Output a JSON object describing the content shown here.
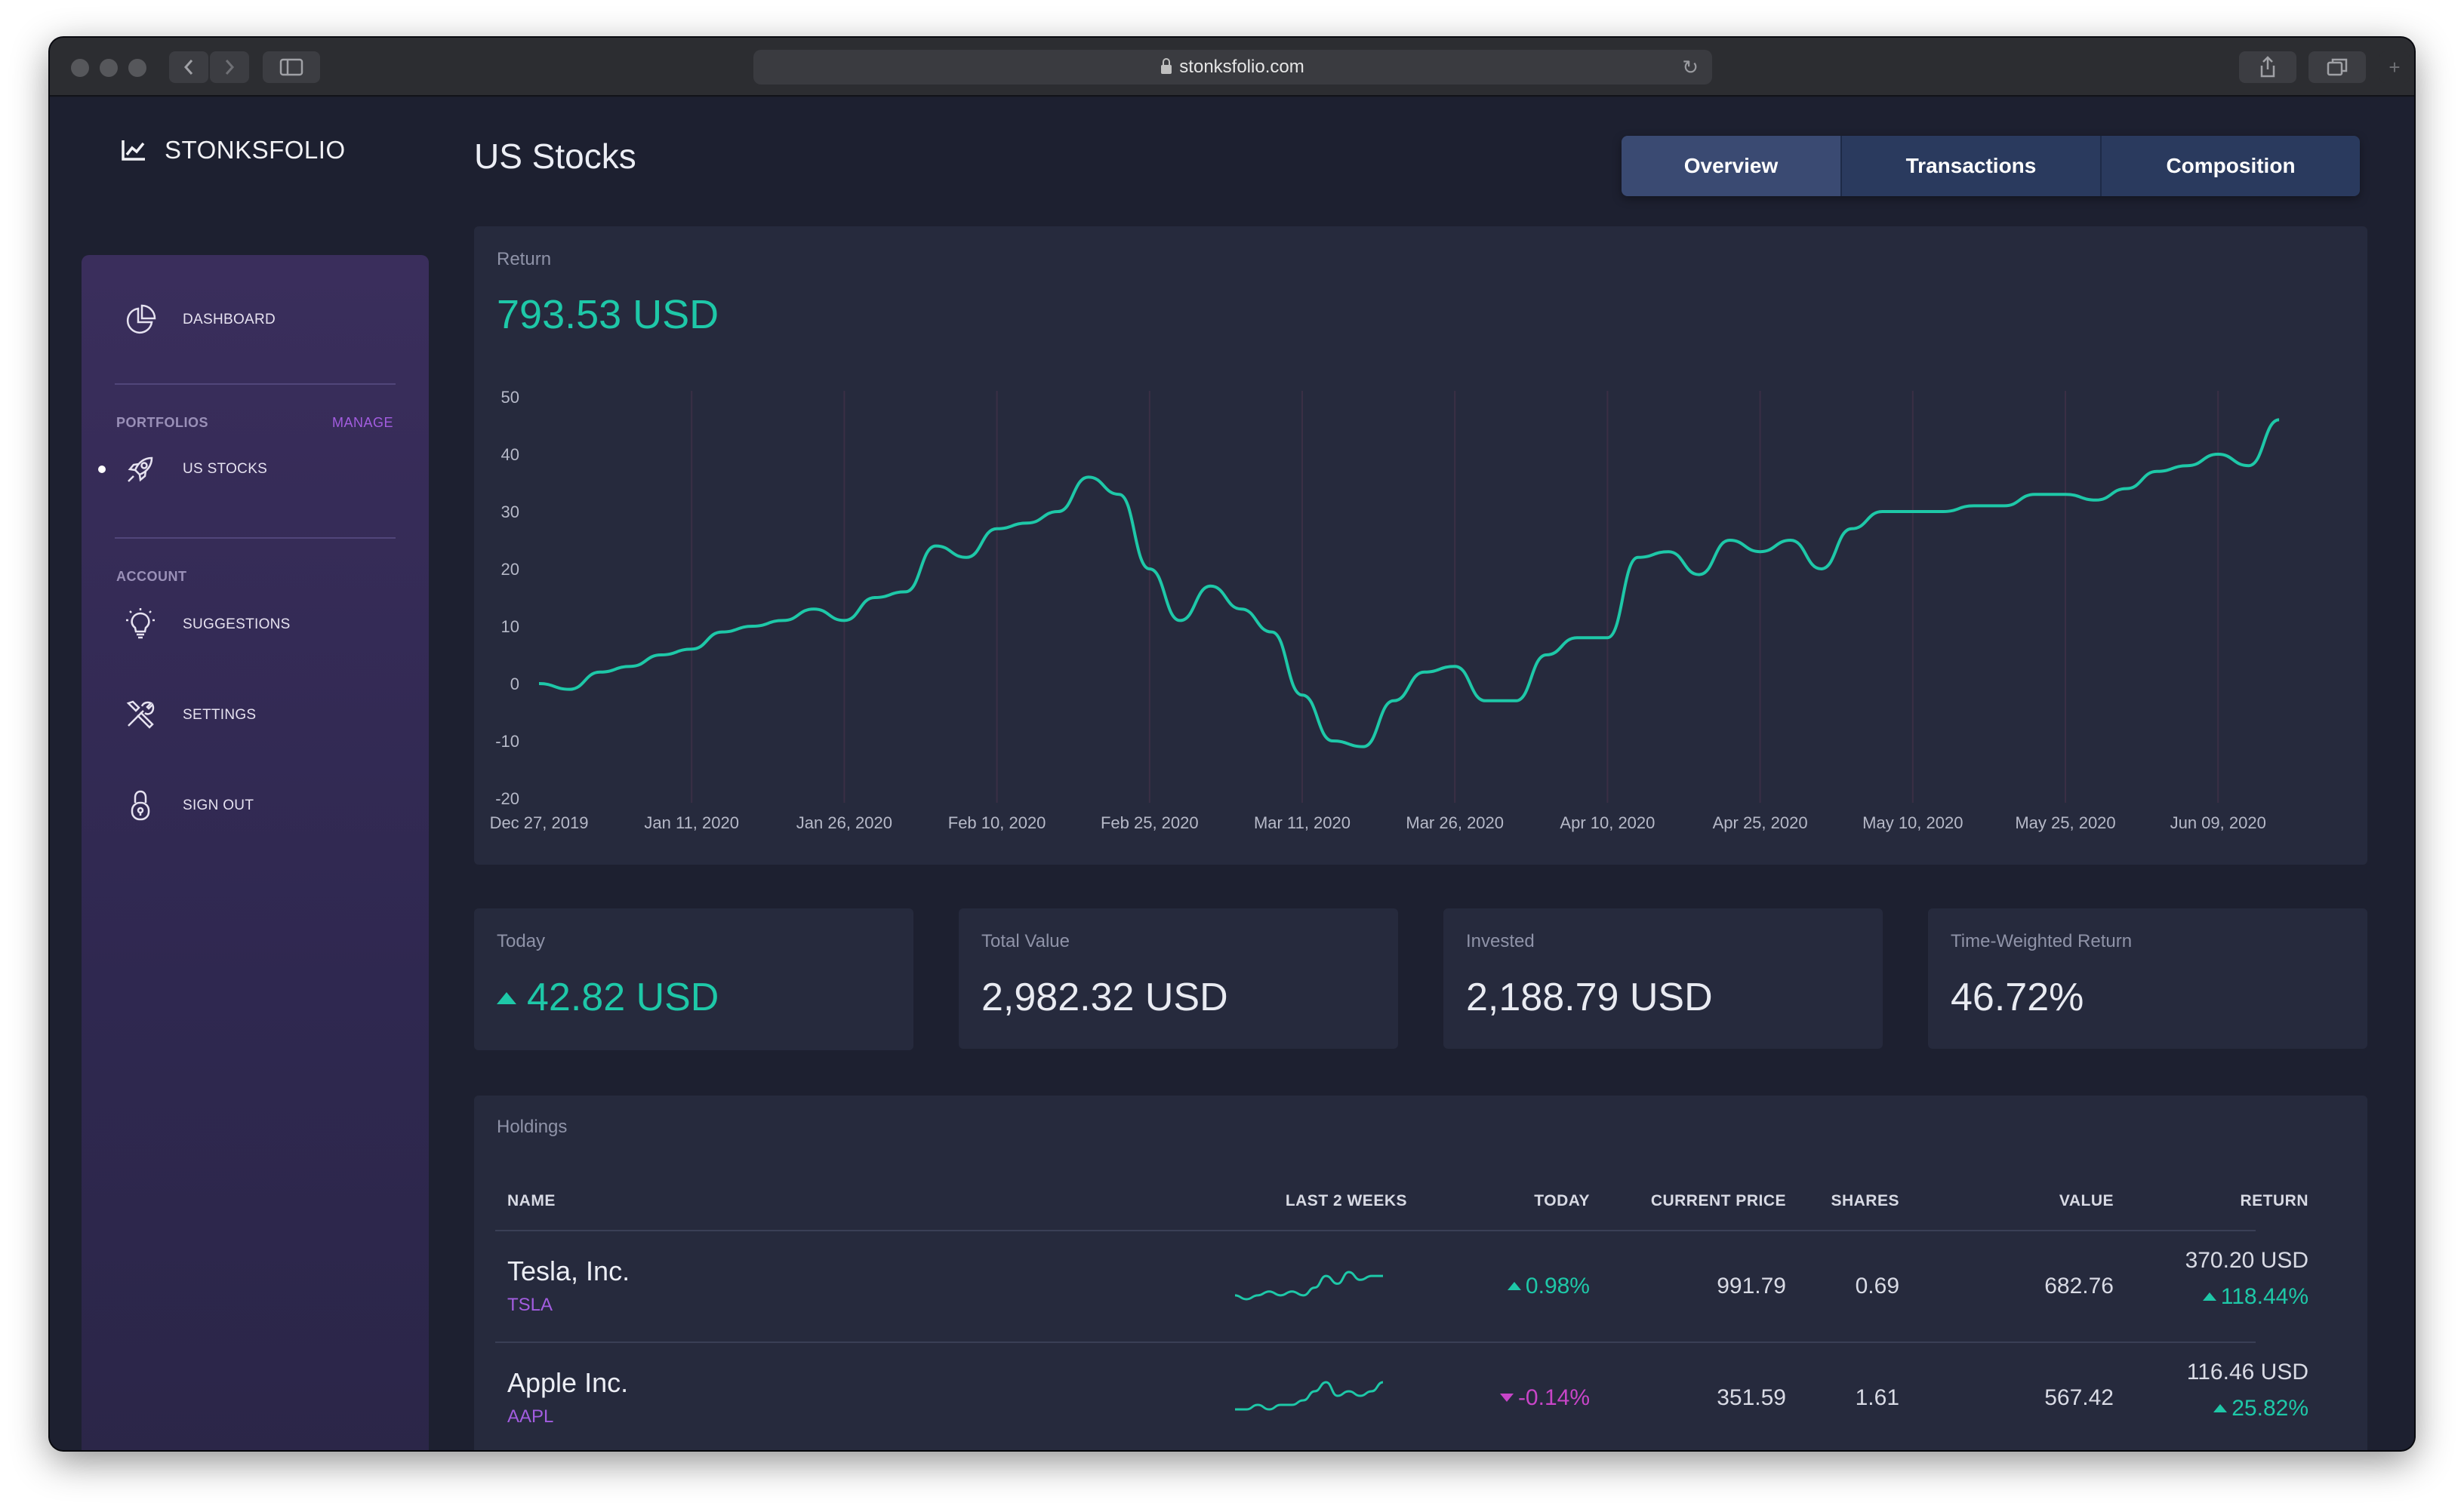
{
  "browser": {
    "url": "stonksfolio.com"
  },
  "brand": {
    "name": "STONKSFOLIO"
  },
  "sidebar": {
    "dashboard_label": "DASHBOARD",
    "portfolios_heading": "PORTFOLIOS",
    "manage_label": "MANAGE",
    "portfolio_items": [
      {
        "label": "US STOCKS",
        "active": true
      }
    ],
    "account_heading": "ACCOUNT",
    "account_items": [
      {
        "label": "SUGGESTIONS",
        "icon": "lightbulb-icon"
      },
      {
        "label": "SETTINGS",
        "icon": "tools-icon"
      },
      {
        "label": "SIGN OUT",
        "icon": "lock-icon"
      }
    ]
  },
  "page": {
    "title": "US Stocks"
  },
  "tabs": [
    {
      "label": "Overview",
      "active": true
    },
    {
      "label": "Transactions",
      "active": false
    },
    {
      "label": "Composition",
      "active": false
    }
  ],
  "return_card": {
    "label": "Return",
    "value": "793.53 USD"
  },
  "chart_data": {
    "type": "line",
    "title": "",
    "xlabel": "",
    "ylabel": "",
    "ylim": [
      -20,
      50
    ],
    "yticks": [
      "50",
      "40",
      "30",
      "20",
      "10",
      "0",
      "-10",
      "-20"
    ],
    "xticks": [
      "Dec 27, 2019",
      "Jan 11, 2020",
      "Jan 26, 2020",
      "Feb 10, 2020",
      "Feb 25, 2020",
      "Mar 11, 2020",
      "Mar 26, 2020",
      "Apr 10, 2020",
      "Apr 25, 2020",
      "May 10, 2020",
      "May 25, 2020",
      "Jun 09, 2020"
    ],
    "grid": "vertical",
    "line_color": "#1ec8a8",
    "series": [
      {
        "x": [
          "2019-12-27",
          "2019-12-30",
          "2020-01-02",
          "2020-01-05",
          "2020-01-08",
          "2020-01-11",
          "2020-01-14",
          "2020-01-17",
          "2020-01-20",
          "2020-01-23",
          "2020-01-26",
          "2020-01-29",
          "2020-02-01",
          "2020-02-04",
          "2020-02-07",
          "2020-02-10",
          "2020-02-13",
          "2020-02-16",
          "2020-02-19",
          "2020-02-22",
          "2020-02-25",
          "2020-02-28",
          "2020-03-02",
          "2020-03-05",
          "2020-03-08",
          "2020-03-11",
          "2020-03-14",
          "2020-03-17",
          "2020-03-20",
          "2020-03-23",
          "2020-03-26",
          "2020-03-29",
          "2020-04-01",
          "2020-04-04",
          "2020-04-07",
          "2020-04-10",
          "2020-04-13",
          "2020-04-16",
          "2020-04-19",
          "2020-04-22",
          "2020-04-25",
          "2020-04-28",
          "2020-05-01",
          "2020-05-04",
          "2020-05-07",
          "2020-05-10",
          "2020-05-13",
          "2020-05-16",
          "2020-05-19",
          "2020-05-22",
          "2020-05-25",
          "2020-05-28",
          "2020-05-31",
          "2020-06-03",
          "2020-06-06",
          "2020-06-09",
          "2020-06-12",
          "2020-06-15"
        ],
        "values": [
          0,
          -1,
          2,
          3,
          5,
          6,
          9,
          10,
          11,
          13,
          11,
          15,
          16,
          24,
          22,
          27,
          28,
          30,
          36,
          33,
          20,
          11,
          17,
          13,
          9,
          -2,
          -10,
          -11,
          -3,
          2,
          3,
          -3,
          -3,
          5,
          8,
          8,
          22,
          23,
          19,
          25,
          23,
          25,
          20,
          27,
          30,
          30,
          30,
          31,
          31,
          33,
          33,
          32,
          34,
          37,
          38,
          40,
          38,
          46
        ]
      }
    ]
  },
  "stats": [
    {
      "label": "Today",
      "value": "42.82 USD",
      "direction": "up"
    },
    {
      "label": "Total Value",
      "value": "2,982.32 USD",
      "direction": "none"
    },
    {
      "label": "Invested",
      "value": "2,188.79 USD",
      "direction": "none"
    },
    {
      "label": "Time-Weighted Return",
      "value": "46.72%",
      "direction": "none"
    }
  ],
  "holdings": {
    "label": "Holdings",
    "columns": {
      "name": "NAME",
      "last2weeks": "LAST 2 WEEKS",
      "today": "TODAY",
      "current_price": "CURRENT PRICE",
      "shares": "SHARES",
      "value": "VALUE",
      "return": "RETURN"
    },
    "rows": [
      {
        "name": "Tesla, Inc.",
        "ticker": "TSLA",
        "today": "0.98%",
        "today_direction": "up",
        "current_price": "991.79",
        "shares": "0.69",
        "value": "682.76",
        "return_amount": "370.20 USD",
        "return_pct": "118.44%",
        "return_direction": "up",
        "sparkline": [
          3,
          2,
          3,
          4,
          3,
          4,
          3,
          5,
          8,
          6,
          9,
          7,
          8,
          8
        ]
      },
      {
        "name": "Apple Inc.",
        "ticker": "AAPL",
        "today": "-0.14%",
        "today_direction": "down",
        "current_price": "351.59",
        "shares": "1.61",
        "value": "567.42",
        "return_amount": "116.46 USD",
        "return_pct": "25.82%",
        "return_direction": "up",
        "sparkline": [
          2,
          2,
          3,
          2,
          3,
          3,
          4,
          6,
          8,
          5,
          6,
          5,
          6,
          8
        ]
      }
    ]
  }
}
